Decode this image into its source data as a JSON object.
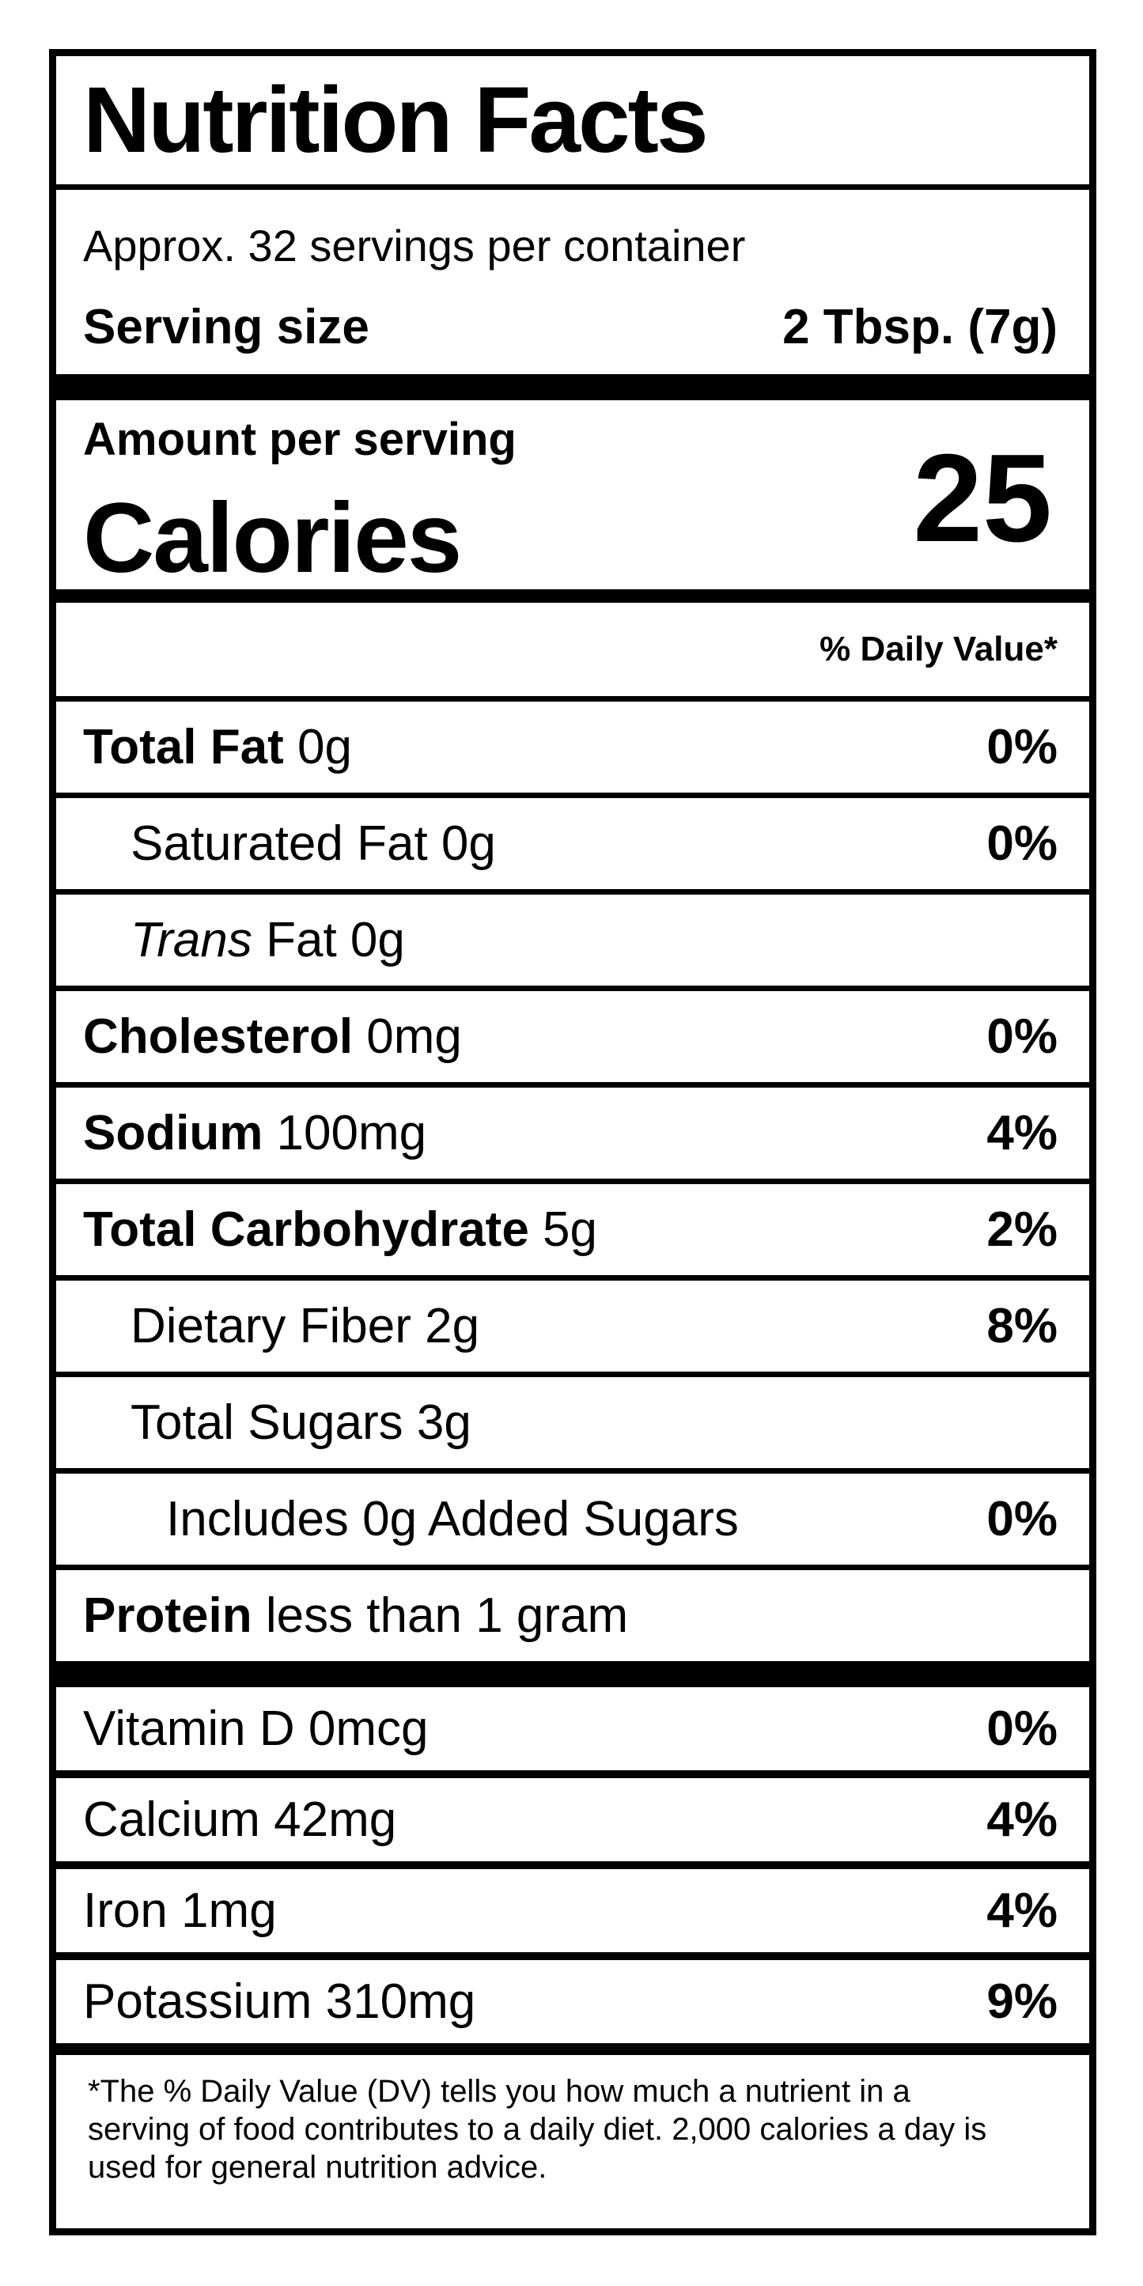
{
  "label": {
    "title": "Nutrition Facts",
    "servings_per_container": "Approx. 32 servings per container",
    "serving_size_label": "Serving size",
    "serving_size_value": "2 Tbsp. (7g)",
    "amount_per_serving_label": "Amount per serving",
    "calories_label": "Calories",
    "calories_value": "25",
    "daily_value_header": "% Daily Value*",
    "nutrient_rows": [
      {
        "parts": [
          {
            "style": "bold",
            "text": "Total Fat"
          },
          {
            "style": "regular",
            "text": " 0g"
          }
        ],
        "daily_value": "0%",
        "indent": 0
      },
      {
        "parts": [
          {
            "style": "regular",
            "text": "Saturated Fat 0g"
          }
        ],
        "daily_value": "0%",
        "indent": 1
      },
      {
        "parts": [
          {
            "style": "italic",
            "text": "Trans"
          },
          {
            "style": "regular",
            "text": " Fat 0g"
          }
        ],
        "daily_value": "",
        "indent": 1
      },
      {
        "parts": [
          {
            "style": "bold",
            "text": "Cholesterol"
          },
          {
            "style": "regular",
            "text": " 0mg"
          }
        ],
        "daily_value": "0%",
        "indent": 0
      },
      {
        "parts": [
          {
            "style": "bold",
            "text": "Sodium"
          },
          {
            "style": "regular",
            "text": " 100mg"
          }
        ],
        "daily_value": "4%",
        "indent": 0
      },
      {
        "parts": [
          {
            "style": "bold",
            "text": "Total Carbohydrate"
          },
          {
            "style": "regular",
            "text": " 5g"
          }
        ],
        "daily_value": "2%",
        "indent": 0
      },
      {
        "parts": [
          {
            "style": "regular",
            "text": "Dietary Fiber 2g"
          }
        ],
        "daily_value": "8%",
        "indent": 1
      },
      {
        "parts": [
          {
            "style": "regular",
            "text": "Total Sugars 3g"
          }
        ],
        "daily_value": "",
        "indent": 1
      },
      {
        "parts": [
          {
            "style": "regular",
            "text": "Includes 0g Added Sugars"
          }
        ],
        "daily_value": "0%",
        "indent": 2
      },
      {
        "parts": [
          {
            "style": "bold",
            "text": "Protein"
          },
          {
            "style": "regular",
            "text": " less than 1 gram"
          }
        ],
        "daily_value": "",
        "indent": 0
      }
    ],
    "micronutrient_rows": [
      {
        "parts": [
          {
            "style": "regular",
            "text": "Vitamin D 0mcg"
          }
        ],
        "daily_value": "0%",
        "indent": 0
      },
      {
        "parts": [
          {
            "style": "regular",
            "text": "Calcium 42mg"
          }
        ],
        "daily_value": "4%",
        "indent": 0
      },
      {
        "parts": [
          {
            "style": "regular",
            "text": "Iron 1mg"
          }
        ],
        "daily_value": "4%",
        "indent": 0
      },
      {
        "parts": [
          {
            "style": "regular",
            "text": "Potassium 310mg"
          }
        ],
        "daily_value": "9%",
        "indent": 0
      }
    ],
    "footnote": "*The % Daily Value (DV) tells you how much a nutrient in a serving of food contributes to a daily diet. 2,000 calories a day is used for general nutrition advice.",
    "colors": {
      "text": "#000000",
      "background": "#ffffff"
    }
  }
}
